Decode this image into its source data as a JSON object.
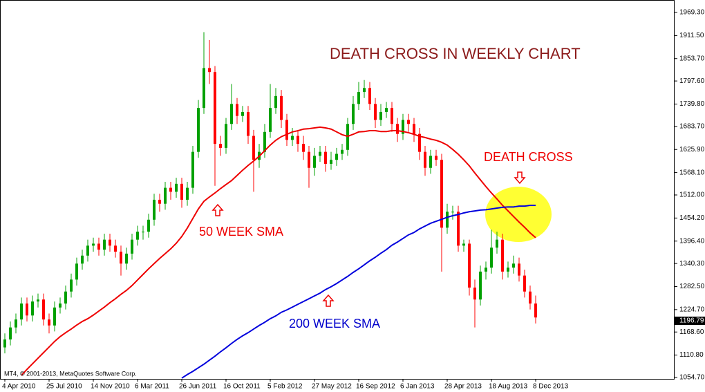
{
  "chart_data": {
    "type": "candlestick",
    "title": "DEATH CROSS IN WEEKLY CHART",
    "annotations": [
      "DEATH CROSS"
    ],
    "copyright": "MT4, © 2001-2013, MetaQuotes Software Corp.",
    "up_color": "#00a000",
    "down_color": "#ff0000",
    "categories": [
      "4 Apr 2010",
      null,
      null,
      null,
      null,
      null,
      null,
      null,
      "25 Jul 2010",
      null,
      null,
      null,
      null,
      null,
      null,
      null,
      "14 Nov 2010",
      null,
      null,
      null,
      null,
      null,
      null,
      null,
      "6 Mar 2011",
      null,
      null,
      null,
      null,
      null,
      null,
      null,
      "26 Jun 2011",
      null,
      null,
      null,
      null,
      null,
      null,
      null,
      "16 Oct 2011",
      null,
      null,
      null,
      null,
      null,
      null,
      null,
      "5 Feb 2012",
      null,
      null,
      null,
      null,
      null,
      null,
      null,
      "27 May 2012",
      null,
      null,
      null,
      null,
      null,
      null,
      null,
      "16 Sep 2012",
      null,
      null,
      null,
      null,
      null,
      null,
      null,
      "6 Jan 2013",
      null,
      null,
      null,
      null,
      null,
      null,
      null,
      "28 Apr 2013",
      null,
      null,
      null,
      null,
      null,
      null,
      null,
      "18 Aug 2013",
      null,
      null,
      null,
      null,
      null,
      null,
      null,
      "8 Dec 2013"
    ],
    "open": [
      1130,
      1150,
      1180,
      1200,
      1240,
      1210,
      1245,
      1250,
      1200,
      1185,
      1230,
      1240,
      1270,
      1300,
      1340,
      1360,
      1385,
      1390,
      1375,
      1400,
      1385,
      1370,
      1340,
      1365,
      1400,
      1420,
      1420,
      1450,
      1500,
      1490,
      1530,
      1520,
      1540,
      1500,
      1530,
      1620,
      1730,
      1830,
      1820,
      1640,
      1630,
      1690,
      1740,
      1710,
      1720,
      1660,
      1600,
      1620,
      1670,
      1730,
      1760,
      1700,
      1650,
      1660,
      1640,
      1620,
      1580,
      1610,
      1620,
      1590,
      1600,
      1615,
      1625,
      1690,
      1740,
      1770,
      1780,
      1740,
      1700,
      1720,
      1730,
      1690,
      1665,
      1700,
      1690,
      1665,
      1620,
      1580,
      1610,
      1600,
      1430,
      1470,
      1470,
      1385,
      1390,
      1280,
      1250,
      1320,
      1330,
      1380,
      1400,
      1320,
      1330,
      1340,
      1310,
      1270,
      1240
    ],
    "high": [
      1165,
      1195,
      1215,
      1255,
      1255,
      1260,
      1265,
      1265,
      1215,
      1245,
      1255,
      1285,
      1315,
      1355,
      1375,
      1400,
      1405,
      1405,
      1415,
      1415,
      1400,
      1385,
      1380,
      1415,
      1435,
      1435,
      1465,
      1515,
      1515,
      1545,
      1545,
      1555,
      1555,
      1545,
      1635,
      1750,
      1920,
      1900,
      1835,
      1660,
      1705,
      1790,
      1755,
      1735,
      1735,
      1675,
      1640,
      1690,
      1790,
      1780,
      1775,
      1715,
      1680,
      1675,
      1660,
      1635,
      1630,
      1635,
      1635,
      1620,
      1630,
      1640,
      1705,
      1760,
      1795,
      1800,
      1795,
      1755,
      1740,
      1745,
      1745,
      1705,
      1715,
      1715,
      1705,
      1680,
      1635,
      1625,
      1625,
      1615,
      1490,
      1485,
      1485,
      1400,
      1400,
      1300,
      1335,
      1345,
      1425,
      1420,
      1415,
      1345,
      1360,
      1355,
      1325,
      1285,
      1260
    ],
    "low": [
      1115,
      1135,
      1165,
      1185,
      1195,
      1195,
      1230,
      1185,
      1165,
      1170,
      1215,
      1225,
      1255,
      1285,
      1325,
      1345,
      1370,
      1360,
      1360,
      1370,
      1355,
      1310,
      1325,
      1350,
      1385,
      1400,
      1405,
      1435,
      1470,
      1475,
      1500,
      1505,
      1480,
      1485,
      1515,
      1605,
      1715,
      1790,
      1535,
      1610,
      1615,
      1675,
      1690,
      1695,
      1640,
      1520,
      1580,
      1605,
      1655,
      1715,
      1680,
      1635,
      1635,
      1620,
      1600,
      1530,
      1560,
      1595,
      1570,
      1575,
      1585,
      1600,
      1610,
      1675,
      1725,
      1755,
      1725,
      1680,
      1685,
      1705,
      1670,
      1645,
      1650,
      1670,
      1645,
      1600,
      1560,
      1565,
      1585,
      1320,
      1415,
      1450,
      1370,
      1370,
      1260,
      1180,
      1235,
      1300,
      1315,
      1365,
      1300,
      1305,
      1315,
      1295,
      1255,
      1225,
      1190
    ],
    "close": [
      1150,
      1180,
      1200,
      1240,
      1210,
      1245,
      1250,
      1200,
      1185,
      1230,
      1240,
      1270,
      1300,
      1340,
      1360,
      1385,
      1390,
      1375,
      1400,
      1385,
      1370,
      1340,
      1365,
      1400,
      1420,
      1420,
      1450,
      1500,
      1490,
      1530,
      1520,
      1540,
      1500,
      1530,
      1620,
      1730,
      1830,
      1820,
      1640,
      1630,
      1690,
      1740,
      1710,
      1720,
      1660,
      1600,
      1620,
      1670,
      1730,
      1760,
      1700,
      1650,
      1660,
      1640,
      1620,
      1580,
      1610,
      1620,
      1590,
      1600,
      1615,
      1625,
      1690,
      1740,
      1770,
      1780,
      1740,
      1700,
      1720,
      1730,
      1690,
      1665,
      1700,
      1690,
      1665,
      1620,
      1580,
      1610,
      1600,
      1430,
      1470,
      1470,
      1385,
      1390,
      1280,
      1250,
      1320,
      1330,
      1380,
      1400,
      1320,
      1330,
      1340,
      1310,
      1270,
      1240,
      1205
    ],
    "series": [
      {
        "name": "50 WEEK SMA",
        "color": "#ee0000",
        "values": [
          null,
          null,
          null,
          1060,
          1075,
          1089,
          1103,
          1117,
          1131,
          1145,
          1157,
          1167,
          1176,
          1186,
          1195,
          1202,
          1211,
          1221,
          1231,
          1242,
          1252,
          1263,
          1273,
          1285,
          1299,
          1313,
          1327,
          1340,
          1353,
          1365,
          1377,
          1391,
          1408,
          1429,
          1453,
          1477,
          1496,
          1507,
          1517,
          1528,
          1538,
          1548,
          1561,
          1574,
          1586,
          1597,
          1609,
          1623,
          1637,
          1649,
          1658,
          1664,
          1670,
          1673,
          1677,
          1678,
          1680,
          1682,
          1680,
          1677,
          1670,
          1663,
          1659,
          1664,
          1670,
          1671,
          1673,
          1673,
          1671,
          1671,
          1673,
          1673,
          1671,
          1668,
          1664,
          1659,
          1656,
          1652,
          1649,
          1644,
          1637,
          1626,
          1614,
          1600,
          1585,
          1567,
          1550,
          1533,
          1517,
          1502,
          1486,
          1472,
          1458,
          1444,
          1431,
          1417,
          1405
        ]
      },
      {
        "name": "200 WEEK SMA",
        "color": "#0000dd",
        "values": [
          null,
          null,
          null,
          null,
          null,
          null,
          null,
          null,
          null,
          null,
          null,
          null,
          null,
          null,
          null,
          null,
          null,
          null,
          null,
          null,
          null,
          null,
          null,
          null,
          null,
          null,
          null,
          null,
          null,
          null,
          null,
          null,
          1053,
          1062,
          1070,
          1079,
          1088,
          1098,
          1108,
          1119,
          1129,
          1140,
          1150,
          1159,
          1167,
          1176,
          1185,
          1193,
          1202,
          1209,
          1218,
          1224,
          1231,
          1238,
          1245,
          1252,
          1259,
          1266,
          1275,
          1282,
          1290,
          1299,
          1308,
          1318,
          1327,
          1337,
          1347,
          1356,
          1366,
          1375,
          1386,
          1394,
          1403,
          1412,
          1418,
          1427,
          1434,
          1441,
          1446,
          1451,
          1456,
          1460,
          1463,
          1467,
          1470,
          1472,
          1474,
          1475,
          1477,
          1479,
          1481,
          1482,
          1482,
          1484,
          1484,
          1486,
          1486
        ]
      }
    ],
    "last_price": 1196.79,
    "ylim": [
      1051.2,
      2000.5
    ],
    "yticks": [
      {
        "value": 1969.3,
        "label": "1969.30"
      },
      {
        "value": 1911.5,
        "label": "1911.50"
      },
      {
        "value": 1853.7,
        "label": "1853.70"
      },
      {
        "value": 1797.6,
        "label": "1797.60"
      },
      {
        "value": 1739.8,
        "label": "1739.80"
      },
      {
        "value": 1683.7,
        "label": "1683.70"
      },
      {
        "value": 1625.9,
        "label": "1625.90"
      },
      {
        "value": 1568.1,
        "label": "1568.10"
      },
      {
        "value": 1512,
        "label": "1512.00"
      },
      {
        "value": 1454.2,
        "label": "1454.20"
      },
      {
        "value": 1396.4,
        "label": "1396.40"
      },
      {
        "value": 1340.3,
        "label": "1340.30"
      },
      {
        "value": 1282.5,
        "label": "1282.50"
      },
      {
        "value": 1224.7,
        "label": "1224.70"
      },
      {
        "value": 1168.6,
        "label": "1168.60"
      },
      {
        "value": 1110.8,
        "label": "1110.80"
      },
      {
        "value": 1054.7,
        "label": "1054.70"
      }
    ],
    "grid": false
  }
}
